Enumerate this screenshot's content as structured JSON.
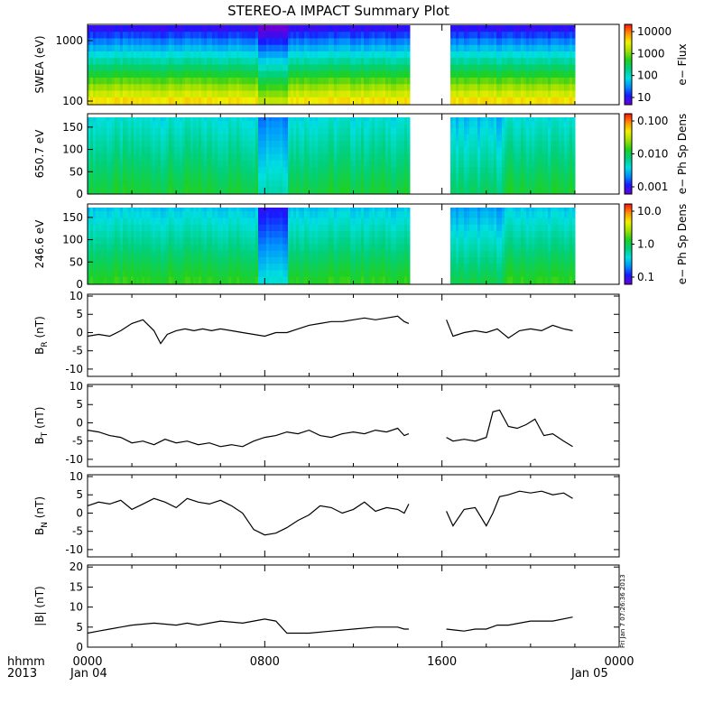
{
  "title": "STEREO-A IMPACT Summary Plot",
  "footer": {
    "left_top": "hhmm",
    "left_bottom": "2013",
    "date_start": "Jan 04",
    "date_end": "Jan 05",
    "timestamp": "Fri Jan  7 07:26:36 2013"
  },
  "colors": {
    "line": "#000000",
    "background": "#ffffff",
    "colormap": [
      "#6a00d8",
      "#1818ff",
      "#0090ff",
      "#00e0e0",
      "#00d080",
      "#20d020",
      "#a0e000",
      "#f0f000",
      "#ff9000",
      "#ff1010"
    ]
  },
  "chart_data": [
    {
      "type": "heatmap",
      "name": "swea",
      "ylabel": "SWEA (eV)",
      "y_ticks": [
        "1000",
        "100"
      ],
      "ylog": true,
      "colorbar_label": "e− Flux",
      "colorbar_ticks": [
        "10000",
        "1000",
        "100",
        "10"
      ],
      "x_hours": [
        0,
        2,
        4,
        6,
        7.5,
        8.3,
        9,
        12,
        14.5
      ],
      "gaps_hours": [
        [
          14.5,
          16.3
        ]
      ],
      "data_end_hour": 21.9
    },
    {
      "type": "heatmap",
      "name": "pad650",
      "ylabel": "650.7 eV",
      "y_ticks": [
        "150",
        "100",
        "50",
        "0"
      ],
      "ylim": [
        0,
        180
      ],
      "colorbar_label": "e− Ph Sp Dens",
      "colorbar_ticks": [
        "0.100",
        "0.010",
        "0.001"
      ],
      "gaps_hours": [
        [
          14.5,
          16.3
        ]
      ]
    },
    {
      "type": "heatmap",
      "name": "pad246",
      "ylabel": "246.6 eV",
      "y_ticks": [
        "150",
        "100",
        "50",
        "0"
      ],
      "ylim": [
        0,
        180
      ],
      "colorbar_label": "e− Ph Sp Dens",
      "colorbar_ticks": [
        "10.0",
        "1.0",
        "0.1"
      ],
      "gaps_hours": [
        [
          14.5,
          16.3
        ]
      ]
    },
    {
      "type": "line",
      "name": "br",
      "ylabel": "B",
      "ylabel_sub": "R",
      "ylabel_unit": " (nT)",
      "ylim": [
        -12,
        10.5
      ],
      "y_ticks": [
        10,
        5,
        0,
        -5,
        -10
      ],
      "x": [
        0,
        0.5,
        1,
        1.5,
        2,
        2.5,
        3,
        3.3,
        3.6,
        4,
        4.4,
        4.8,
        5.2,
        5.6,
        6,
        6.5,
        7,
        7.5,
        8,
        8.5,
        9,
        9.5,
        10,
        10.5,
        11,
        11.5,
        12,
        12.5,
        13,
        13.5,
        14,
        14.3,
        14.5,
        16.2,
        16.5,
        17,
        17.5,
        18,
        18.5,
        19,
        19.5,
        20,
        20.5,
        21,
        21.5,
        21.9
      ],
      "values": [
        -1,
        -0.5,
        -1,
        0.5,
        2.5,
        3.5,
        0.5,
        -3,
        -0.5,
        0.5,
        1,
        0.5,
        1,
        0.5,
        1,
        0.5,
        0,
        -0.5,
        -1,
        0,
        0,
        1,
        2,
        2.5,
        3,
        3,
        3.5,
        4,
        3.5,
        4,
        4.5,
        3,
        2.5,
        3.5,
        -1,
        0,
        0.5,
        0,
        1,
        -1.5,
        0.5,
        1,
        0.5,
        2,
        1,
        0.5
      ]
    },
    {
      "type": "line",
      "name": "bt",
      "ylabel": "B",
      "ylabel_sub": "T",
      "ylabel_unit": " (nT)",
      "ylim": [
        -12,
        10.5
      ],
      "y_ticks": [
        10,
        5,
        0,
        -5,
        -10
      ],
      "x": [
        0,
        0.5,
        1,
        1.5,
        2,
        2.5,
        3,
        3.5,
        4,
        4.5,
        5,
        5.5,
        6,
        6.5,
        7,
        7.5,
        8,
        8.5,
        9,
        9.5,
        10,
        10.5,
        11,
        11.5,
        12,
        12.5,
        13,
        13.5,
        14,
        14.3,
        14.5,
        16.2,
        16.5,
        17,
        17.5,
        18,
        18.3,
        18.6,
        19,
        19.4,
        19.8,
        20.2,
        20.6,
        21,
        21.5,
        21.9
      ],
      "values": [
        -2,
        -2.5,
        -3.5,
        -4,
        -5.5,
        -5,
        -6,
        -4.5,
        -5.5,
        -5,
        -6,
        -5.5,
        -6.5,
        -6,
        -6.5,
        -5,
        -4,
        -3.5,
        -2.5,
        -3,
        -2,
        -3.5,
        -4,
        -3,
        -2.5,
        -3,
        -2,
        -2.5,
        -1.5,
        -3.5,
        -3,
        -4,
        -5,
        -4.5,
        -5,
        -4,
        3,
        3.5,
        -1,
        -1.5,
        -0.5,
        1,
        -3.5,
        -3,
        -5,
        -6.5
      ]
    },
    {
      "type": "line",
      "name": "bn",
      "ylabel": "B",
      "ylabel_sub": "N",
      "ylabel_unit": " (nT)",
      "ylim": [
        -12,
        10.5
      ],
      "y_ticks": [
        10,
        5,
        0,
        -5,
        -10
      ],
      "x": [
        0,
        0.5,
        1,
        1.5,
        2,
        2.5,
        3,
        3.5,
        4,
        4.5,
        5,
        5.5,
        6,
        6.5,
        7,
        7.5,
        8,
        8.5,
        9,
        9.5,
        10,
        10.5,
        11,
        11.5,
        12,
        12.5,
        13,
        13.5,
        14,
        14.3,
        14.5,
        16.2,
        16.5,
        17,
        17.5,
        18,
        18.3,
        18.6,
        19,
        19.5,
        20,
        20.5,
        21,
        21.5,
        21.9
      ],
      "values": [
        2,
        3,
        2.5,
        3.5,
        1,
        2.5,
        4,
        3,
        1.5,
        4,
        3,
        2.5,
        3.5,
        2,
        0,
        -4.5,
        -6,
        -5.5,
        -4,
        -2,
        -0.5,
        2,
        1.5,
        0,
        1,
        3,
        0.5,
        1.5,
        1,
        0,
        2.5,
        0.5,
        -3.5,
        1,
        1.5,
        -3.5,
        0,
        4.5,
        5,
        6,
        5.5,
        6,
        5,
        5.5,
        4
      ]
    },
    {
      "type": "line",
      "name": "bmag",
      "ylabel": "|B| (nT)",
      "ylim": [
        0,
        20.5
      ],
      "y_ticks": [
        20,
        15,
        10,
        5,
        0
      ],
      "x": [
        0,
        0.5,
        1,
        1.5,
        2,
        3,
        4,
        4.5,
        5,
        6,
        7,
        7.5,
        8,
        8.5,
        9,
        10,
        11,
        12,
        13,
        14,
        14.3,
        14.5,
        16.2,
        17,
        17.5,
        18,
        18.5,
        19,
        20,
        21,
        21.9
      ],
      "values": [
        3.5,
        4,
        4.5,
        5,
        5.5,
        6,
        5.5,
        6,
        5.5,
        6.5,
        6,
        6.5,
        7,
        6.5,
        3.5,
        3.5,
        4,
        4.5,
        5,
        5,
        4.5,
        4.5,
        4.5,
        4,
        4.5,
        4.5,
        5.5,
        5.5,
        6.5,
        6.5,
        7.5
      ]
    }
  ],
  "x_axis": {
    "xlim_hours": [
      0,
      24
    ],
    "tick_labels": [
      "0000",
      "0800",
      "1600",
      "0000"
    ]
  }
}
